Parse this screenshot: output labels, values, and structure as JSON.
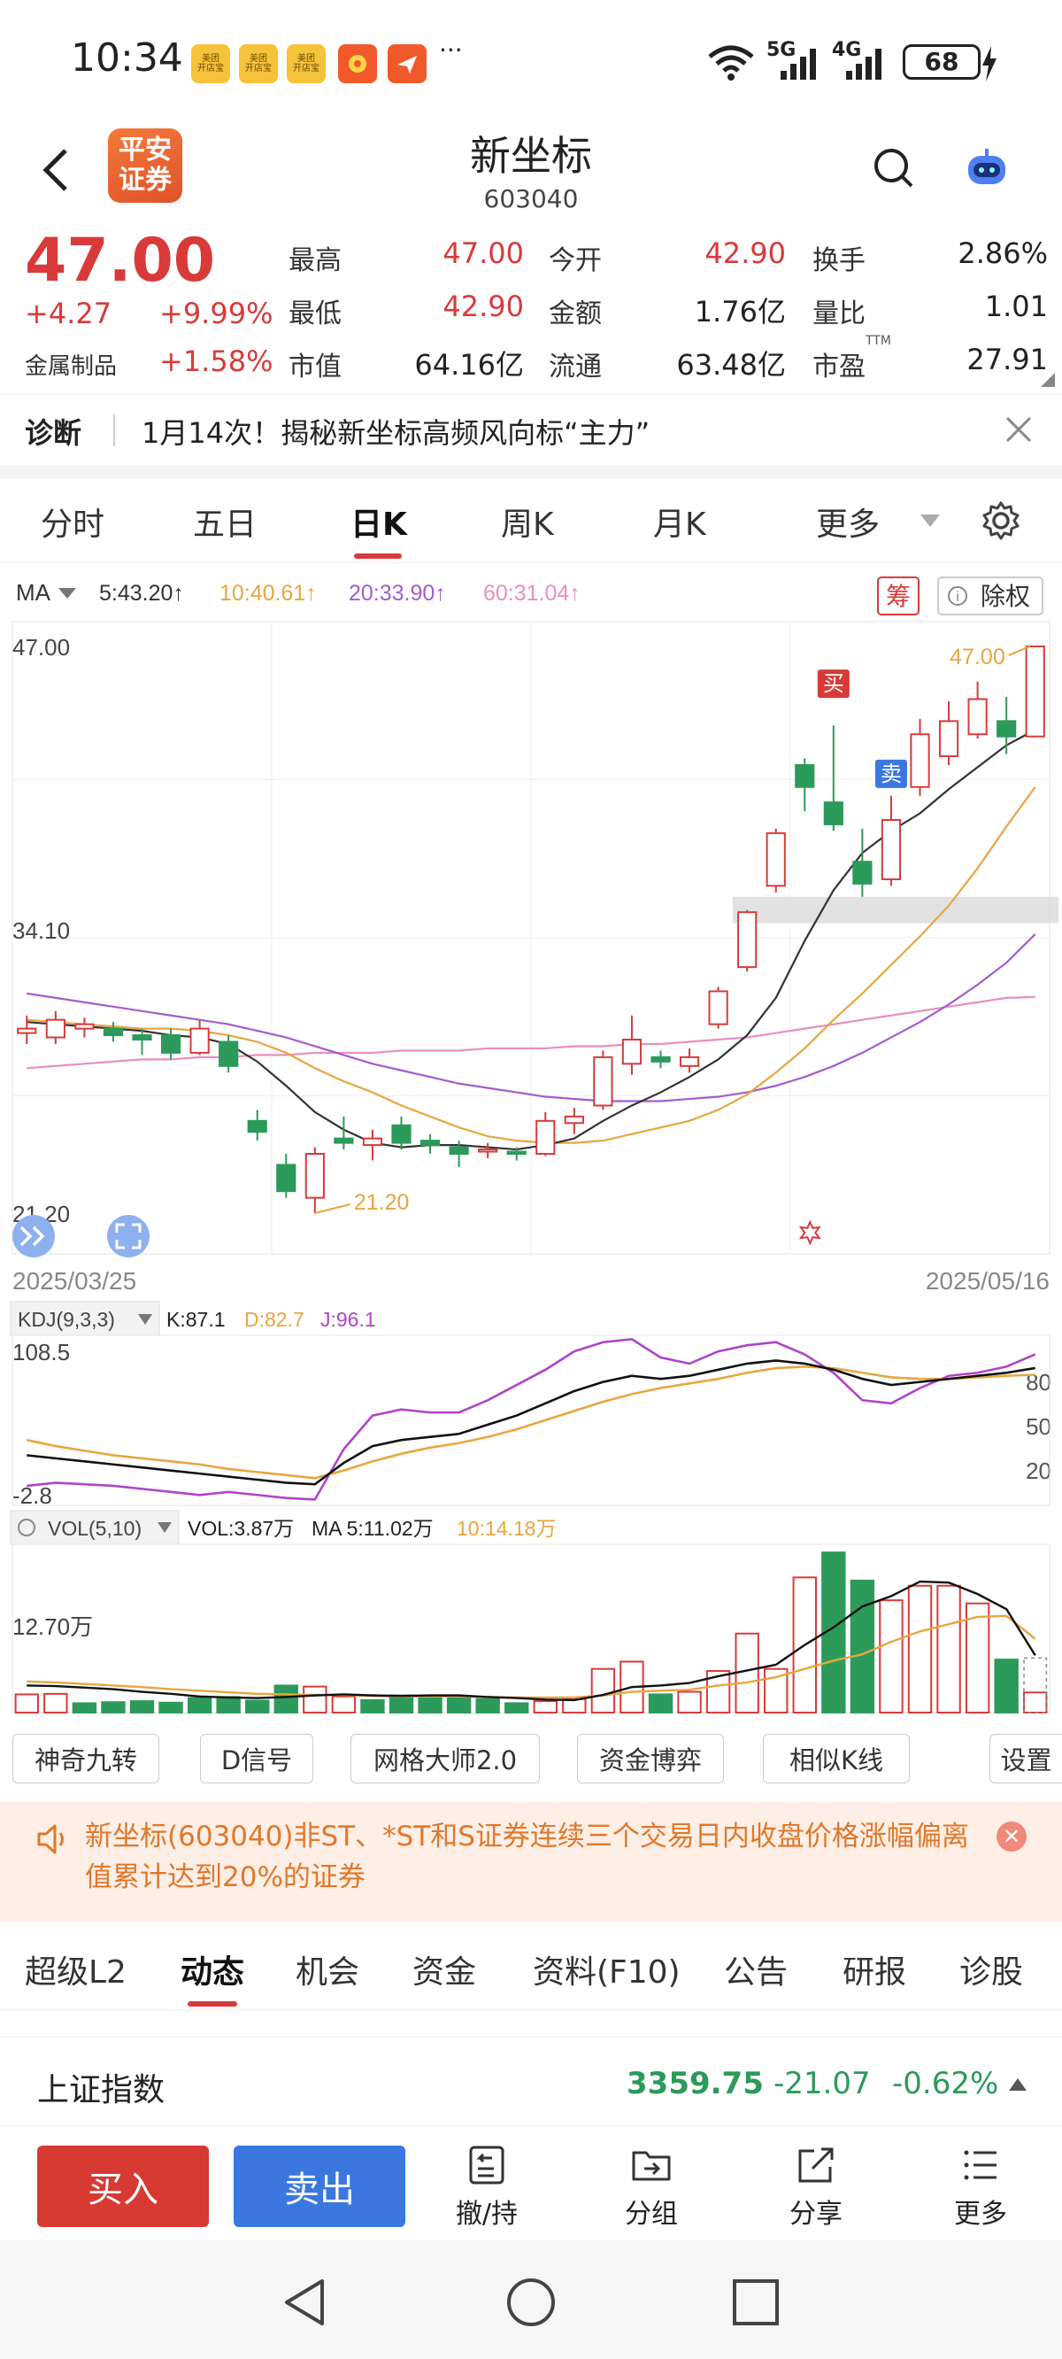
{
  "status_bar": {
    "time": "10:34",
    "apps": [
      {
        "label": "美团\n开店宝",
        "color": "#f6c23a"
      },
      {
        "label": "美团\n开店宝",
        "color": "#f6c23a"
      },
      {
        "label": "美团\n开店宝",
        "color": "#f6c23a"
      },
      {
        "label": "",
        "color": "#f05a2a"
      },
      {
        "label": "",
        "color": "#f05a2a"
      }
    ],
    "more": "···",
    "network": "5G",
    "network2": "4G",
    "battery": "68"
  },
  "header": {
    "broker_logo": "平安\n证券",
    "title": "新坐标",
    "code": "603040"
  },
  "quote": {
    "price": "47.00",
    "change": "+4.27",
    "change_pct": "+9.99%",
    "sector": "金属制品",
    "sector_pct": "+1.58%",
    "fields": [
      {
        "label": "最高",
        "value": "47.00",
        "color": "red"
      },
      {
        "label": "今开",
        "value": "42.90",
        "color": "red"
      },
      {
        "label": "换手",
        "value": "2.86%",
        "color": "dark"
      },
      {
        "label": "最低",
        "value": "42.90",
        "color": "red"
      },
      {
        "label": "金额",
        "value": "1.76亿",
        "color": "dark"
      },
      {
        "label": "量比",
        "value": "1.01",
        "color": "dark"
      },
      {
        "label": "市值",
        "value": "64.16亿",
        "color": "dark"
      },
      {
        "label": "流通",
        "value": "63.48亿",
        "color": "dark"
      },
      {
        "label": "市盈",
        "value": "27.91",
        "color": "dark",
        "sup": "TTM"
      }
    ]
  },
  "diagnose": {
    "label": "诊断",
    "text": "1月14次！揭秘新坐标高频风向标“主力”"
  },
  "chart_tabs": {
    "items": [
      "分时",
      "五日",
      "日K",
      "周K",
      "月K",
      "更多"
    ],
    "active": "日K"
  },
  "chart_data": [
    {
      "type": "candlestick",
      "ma_label": "MA",
      "ma_values": [
        "5:43.20↑",
        "10:40.61↑",
        "20:33.90↑",
        "60:31.04↑"
      ],
      "badge_chou": "筹",
      "badge_chuquan": "除权",
      "y_ticks": [
        "47.00",
        "34.10",
        "21.20"
      ],
      "ylim": [
        21.2,
        47.0
      ],
      "x_start": "2025/03/25",
      "x_end": "2025/05/16",
      "high_label": "47.00",
      "low_label": "21.20",
      "buy_mark": "买",
      "sell_mark": "卖",
      "candles": [
        {
          "o": 29.4,
          "c": 29.6,
          "h": 30.2,
          "l": 28.9
        },
        {
          "o": 29.2,
          "c": 30.0,
          "h": 30.4,
          "l": 28.9
        },
        {
          "o": 29.6,
          "c": 29.8,
          "h": 30.1,
          "l": 29.2
        },
        {
          "o": 29.6,
          "c": 29.3,
          "h": 29.9,
          "l": 29.0
        },
        {
          "o": 29.3,
          "c": 29.1,
          "h": 29.6,
          "l": 28.4
        },
        {
          "o": 29.3,
          "c": 28.5,
          "h": 29.6,
          "l": 28.2
        },
        {
          "o": 28.5,
          "c": 29.6,
          "h": 30.0,
          "l": 28.4
        },
        {
          "o": 29.0,
          "c": 27.9,
          "h": 29.3,
          "l": 27.6
        },
        {
          "o": 25.4,
          "c": 24.9,
          "h": 25.9,
          "l": 24.5
        },
        {
          "o": 23.4,
          "c": 22.2,
          "h": 23.9,
          "l": 21.9
        },
        {
          "o": 21.9,
          "c": 23.9,
          "h": 24.2,
          "l": 21.2
        },
        {
          "o": 24.6,
          "c": 24.4,
          "h": 25.6,
          "l": 24.1
        },
        {
          "o": 24.3,
          "c": 24.6,
          "h": 25.0,
          "l": 23.6
        },
        {
          "o": 25.2,
          "c": 24.4,
          "h": 25.6,
          "l": 24.1
        },
        {
          "o": 24.5,
          "c": 24.3,
          "h": 24.8,
          "l": 23.9
        },
        {
          "o": 24.2,
          "c": 23.9,
          "h": 24.5,
          "l": 23.3
        },
        {
          "o": 24.0,
          "c": 24.1,
          "h": 24.4,
          "l": 23.7
        },
        {
          "o": 24.0,
          "c": 23.9,
          "h": 24.2,
          "l": 23.6
        },
        {
          "o": 23.9,
          "c": 25.4,
          "h": 25.8,
          "l": 23.8
        },
        {
          "o": 25.3,
          "c": 25.6,
          "h": 26.0,
          "l": 24.8
        },
        {
          "o": 26.1,
          "c": 28.3,
          "h": 28.6,
          "l": 25.9
        },
        {
          "o": 28.0,
          "c": 29.1,
          "h": 30.2,
          "l": 27.5
        },
        {
          "o": 28.3,
          "c": 28.1,
          "h": 28.6,
          "l": 27.8
        },
        {
          "o": 27.9,
          "c": 28.3,
          "h": 28.7,
          "l": 27.6
        },
        {
          "o": 29.8,
          "c": 31.3,
          "h": 31.5,
          "l": 29.6
        },
        {
          "o": 32.4,
          "c": 34.9,
          "h": 35.0,
          "l": 32.2
        },
        {
          "o": 36.1,
          "c": 38.5,
          "h": 38.7,
          "l": 35.8
        },
        {
          "o": 41.6,
          "c": 40.6,
          "h": 41.9,
          "l": 39.5
        },
        {
          "o": 39.9,
          "c": 38.9,
          "h": 43.4,
          "l": 38.6
        },
        {
          "o": 37.2,
          "c": 36.2,
          "h": 38.7,
          "l": 35.6
        },
        {
          "o": 36.4,
          "c": 39.1,
          "h": 40.2,
          "l": 36.1
        },
        {
          "o": 40.6,
          "c": 43.0,
          "h": 43.7,
          "l": 40.2
        },
        {
          "o": 42.0,
          "c": 43.6,
          "h": 44.5,
          "l": 41.6
        },
        {
          "o": 43.0,
          "c": 44.6,
          "h": 45.4,
          "l": 42.8
        },
        {
          "o": 43.6,
          "c": 42.9,
          "h": 44.7,
          "l": 42.1
        },
        {
          "o": 42.9,
          "c": 47.0,
          "h": 47.0,
          "l": 42.9
        }
      ],
      "ma5": [
        29.9,
        29.8,
        29.7,
        29.6,
        29.5,
        29.3,
        29.2,
        28.9,
        28.1,
        27.0,
        25.8,
        25.0,
        24.4,
        24.2,
        24.3,
        24.3,
        24.2,
        24.1,
        24.3,
        24.6,
        25.4,
        26.1,
        26.7,
        27.4,
        28.2,
        29.3,
        31.0,
        33.6,
        35.9,
        37.6,
        38.6,
        39.4,
        40.5,
        41.5,
        42.5,
        43.2
      ],
      "ma10": [
        30.0,
        29.9,
        29.8,
        29.7,
        29.6,
        29.6,
        29.5,
        29.3,
        29.0,
        28.5,
        27.8,
        27.2,
        26.7,
        26.1,
        25.6,
        25.1,
        24.7,
        24.5,
        24.4,
        24.4,
        24.5,
        24.8,
        25.1,
        25.4,
        25.9,
        26.6,
        27.6,
        28.7,
        30.0,
        31.2,
        32.5,
        33.8,
        35.2,
        36.9,
        38.8,
        40.6
      ],
      "ma20": [
        31.2,
        31.0,
        30.8,
        30.6,
        30.4,
        30.2,
        30.0,
        29.8,
        29.5,
        29.2,
        28.8,
        28.4,
        28.0,
        27.7,
        27.4,
        27.1,
        26.9,
        26.7,
        26.5,
        26.4,
        26.3,
        26.3,
        26.3,
        26.4,
        26.5,
        26.7,
        27.0,
        27.4,
        27.9,
        28.5,
        29.2,
        29.9,
        30.7,
        31.6,
        32.6,
        33.9
      ],
      "ma60": [
        27.8,
        27.9,
        28.0,
        28.1,
        28.2,
        28.2,
        28.3,
        28.3,
        28.4,
        28.4,
        28.5,
        28.5,
        28.5,
        28.6,
        28.6,
        28.6,
        28.7,
        28.7,
        28.7,
        28.8,
        28.8,
        28.9,
        28.9,
        29.0,
        29.1,
        29.2,
        29.4,
        29.6,
        29.8,
        30.0,
        30.2,
        30.4,
        30.6,
        30.8,
        31.0,
        31.04
      ]
    },
    {
      "type": "line",
      "label": "KDJ(9,3,3)",
      "k_label": "K:87.1",
      "d_label": "D:82.7",
      "j_label": "J:96.1",
      "ylim": [
        -2.8,
        108.5
      ],
      "y_ticks": [
        "108.5",
        "-2.8"
      ],
      "right_ticks": [
        "80",
        "50",
        "20"
      ],
      "k": [
        30,
        28,
        26,
        24,
        22,
        20,
        18,
        16,
        14,
        12,
        11,
        25,
        36,
        40,
        42,
        44,
        50,
        56,
        64,
        72,
        78,
        82,
        80,
        82,
        86,
        90,
        92,
        90,
        86,
        80,
        76,
        78,
        80,
        82,
        84,
        87.1
      ],
      "d": [
        40,
        36,
        33,
        30,
        28,
        26,
        24,
        21,
        19,
        17,
        15,
        20,
        26,
        31,
        35,
        38,
        42,
        47,
        53,
        59,
        65,
        70,
        74,
        77,
        80,
        84,
        87,
        88,
        87,
        84,
        81,
        80,
        80,
        81,
        82,
        82.7
      ],
      "j": [
        10,
        12,
        11,
        10,
        8,
        6,
        4,
        6,
        4,
        2,
        1,
        34,
        56,
        60,
        58,
        58,
        66,
        76,
        86,
        98,
        104,
        106,
        94,
        90,
        98,
        102,
        104,
        96,
        84,
        66,
        64,
        74,
        82,
        84,
        88,
        96.1
      ]
    },
    {
      "type": "bar",
      "label": "VOL(5,10)",
      "vol_label": "VOL:3.87万",
      "ma5_label": "MA 5:11.02万",
      "ma10_label": "10:14.18万",
      "y_tick": "12.70万",
      "ylim": [
        0,
        31.0
      ],
      "values": [
        3.5,
        3.6,
        1.8,
        2.0,
        2.2,
        1.9,
        2.8,
        3.0,
        2.3,
        5.2,
        5.0,
        3.1,
        2.4,
        3.3,
        3.2,
        2.8,
        2.6,
        1.8,
        2.2,
        2.6,
        8.4,
        9.8,
        3.5,
        4.0,
        8.0,
        15.2,
        8.4,
        26.0,
        30.8,
        25.4,
        21.6,
        24.4,
        24.4,
        21.0,
        10.2,
        3.87
      ],
      "up": [
        true,
        true,
        false,
        false,
        false,
        false,
        false,
        false,
        false,
        false,
        true,
        true,
        false,
        false,
        false,
        false,
        false,
        false,
        true,
        true,
        true,
        true,
        false,
        true,
        true,
        true,
        true,
        true,
        false,
        false,
        true,
        true,
        true,
        true,
        false,
        true
      ],
      "ma5": [
        5.2,
        5.1,
        4.8,
        4.5,
        4.0,
        3.6,
        3.1,
        2.9,
        2.8,
        3.0,
        3.3,
        3.5,
        3.3,
        3.2,
        3.3,
        3.3,
        3.0,
        2.8,
        2.5,
        2.4,
        3.4,
        4.9,
        5.2,
        5.7,
        7.0,
        8.1,
        9.2,
        13.0,
        16.4,
        20.4,
        22.4,
        25.2,
        25.0,
        22.8,
        19.9,
        11.02
      ],
      "ma10": [
        6.0,
        5.8,
        5.5,
        5.2,
        4.9,
        4.5,
        4.2,
        3.9,
        3.6,
        3.5,
        3.4,
        3.4,
        3.2,
        3.1,
        3.1,
        3.1,
        3.0,
        2.9,
        2.9,
        2.9,
        3.3,
        4.0,
        4.2,
        4.4,
        5.2,
        5.8,
        6.8,
        8.4,
        10.0,
        11.2,
        13.6,
        15.6,
        17.0,
        18.4,
        18.6,
        14.18
      ]
    }
  ],
  "chart_badges": {
    "gear": "gear-icon"
  },
  "tools": [
    "神奇九转",
    "D信号",
    "网格大师2.0",
    "资金博弈",
    "相似K线",
    "设置"
  ],
  "warning": {
    "text": "新坐标(603040)非ST、*ST和S证券连续三个交易日内收盘价格涨幅偏离值累计达到20%的证券"
  },
  "bottom_tabs": {
    "items": [
      "超级L2",
      "动态",
      "机会",
      "资金",
      "资料(F10)",
      "公告",
      "研报",
      "诊股"
    ],
    "active": "动态"
  },
  "index_bar": {
    "name": "上证指数",
    "value": "3359.75",
    "change": "-21.07",
    "pct": "-0.62%"
  },
  "trade_bar": {
    "buy": "买入",
    "sell": "卖出",
    "items": [
      "撤/持",
      "分组",
      "分享",
      "更多"
    ]
  },
  "colors": {
    "up": "#d83a3a",
    "down": "#2c9a5a",
    "ma5": "#333333",
    "ma10": "#e8a640",
    "ma20": "#a55ccf",
    "ma60": "#e88ec0",
    "buy": "#d63a32",
    "sell": "#3a78e0"
  }
}
